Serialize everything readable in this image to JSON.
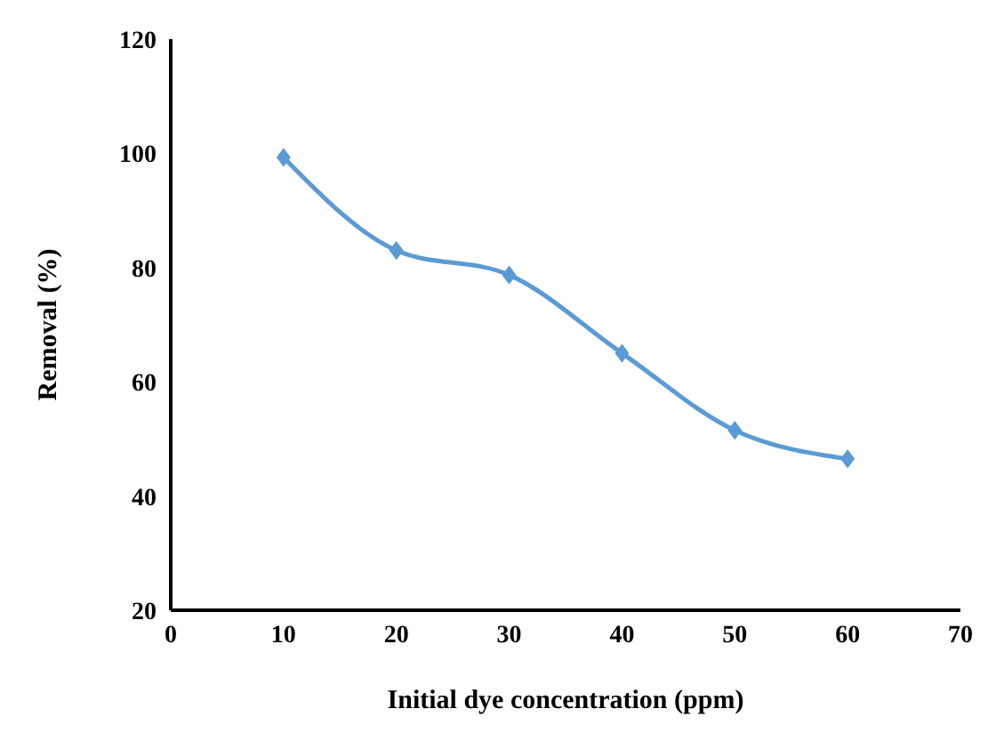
{
  "chart_data": {
    "type": "line",
    "xlabel": "Initial dye concentration (ppm)",
    "ylabel": "Removal (%)",
    "x": [
      10,
      20,
      30,
      40,
      50,
      60
    ],
    "series": [
      {
        "color": "#5b9bd5",
        "values": [
          99.3,
          83,
          78.7,
          65,
          51.5,
          46.5
        ]
      }
    ],
    "xlim": [
      0,
      70
    ],
    "xticks": [
      0,
      10,
      20,
      30,
      40,
      50,
      60,
      70
    ],
    "ylim": [
      20,
      120
    ],
    "yticks": [
      20,
      40,
      60,
      80,
      100,
      120
    ],
    "grid": false,
    "legend": false,
    "marker": "diamond",
    "line_style": "solid"
  }
}
